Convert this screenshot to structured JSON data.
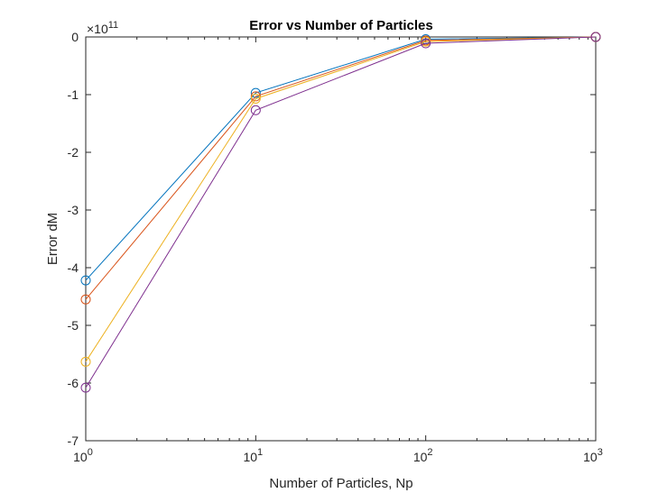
{
  "chart_data": {
    "type": "line",
    "title": "Error vs Number of Particles",
    "xlabel": "Number of Particles, Np",
    "ylabel": "Error dM",
    "x_scale": "log",
    "xlim": [
      1,
      1000
    ],
    "x_ticks": [
      {
        "value": 1,
        "base": "10",
        "exp": "0"
      },
      {
        "value": 10,
        "base": "10",
        "exp": "1"
      },
      {
        "value": 100,
        "base": "10",
        "exp": "2"
      },
      {
        "value": 1000,
        "base": "10",
        "exp": "3"
      }
    ],
    "y_exponent": {
      "prefix": "×10",
      "exp": "11"
    },
    "ylim": [
      -7,
      0
    ],
    "y_ticks": [
      "0",
      "-1",
      "-2",
      "-3",
      "-4",
      "-5",
      "-6",
      "-7"
    ],
    "grid": false,
    "marker": "circle-open",
    "x": [
      1,
      10,
      100,
      1000
    ],
    "series": [
      {
        "color": "#0072BD",
        "values": [
          -4.22,
          -0.97,
          -0.04,
          0.0
        ]
      },
      {
        "color": "#D95319",
        "values": [
          -4.55,
          -1.03,
          -0.06,
          0.0
        ]
      },
      {
        "color": "#EDB120",
        "values": [
          -5.63,
          -1.07,
          -0.08,
          0.0
        ]
      },
      {
        "color": "#7E2F8E",
        "values": [
          -6.08,
          -1.27,
          -0.11,
          0.0
        ]
      }
    ]
  }
}
